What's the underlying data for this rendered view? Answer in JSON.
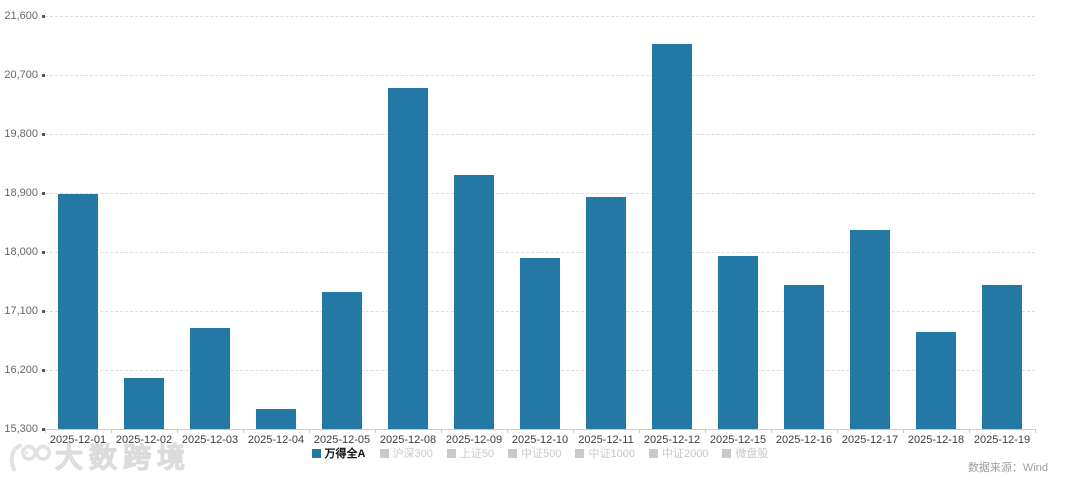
{
  "chart_data": {
    "type": "bar",
    "title": "",
    "series_name": "万得全A",
    "categories": [
      "2025-12-01",
      "2025-12-02",
      "2025-12-03",
      "2025-12-04",
      "2025-12-05",
      "2025-12-08",
      "2025-12-09",
      "2025-12-10",
      "2025-12-11",
      "2025-12-12",
      "2025-12-15",
      "2025-12-16",
      "2025-12-17",
      "2025-12-18",
      "2025-12-19"
    ],
    "values": [
      18880,
      16080,
      16840,
      15610,
      17390,
      20500,
      19180,
      17910,
      18840,
      21180,
      17940,
      17490,
      18330,
      16780,
      17500
    ],
    "xlabel": "",
    "ylabel": "",
    "ylim": [
      15300,
      21600
    ],
    "yticks": [
      15300,
      16200,
      17100,
      18000,
      18900,
      19800,
      20700,
      21600
    ],
    "ytick_labels": [
      "15,300",
      "16,200",
      "17,100",
      "18,000",
      "18,900",
      "19,800",
      "20,700",
      "21,600"
    ],
    "grid": "horizontal-dashed",
    "legend_position": "bottom-center",
    "bar_color": "#2478a6"
  },
  "legend": {
    "items": [
      {
        "label": "万得全A",
        "active": true
      },
      {
        "label": "沪深300",
        "active": false
      },
      {
        "label": "上证50",
        "active": false
      },
      {
        "label": "中证500",
        "active": false
      },
      {
        "label": "中证1000",
        "active": false
      },
      {
        "label": "中证2000",
        "active": false
      },
      {
        "label": "微盘股",
        "active": false
      }
    ]
  },
  "watermark": {
    "text": "大数跨境"
  },
  "footer": {
    "source": "数据来源：Wind"
  },
  "colors": {
    "bar": "#2478a6",
    "inactive_legend": "#c9c9c9",
    "gridline": "#dddddd",
    "y_axis_text": "#666666",
    "x_axis_text": "#3d3d3d",
    "source_text": "#9b9b9b"
  }
}
